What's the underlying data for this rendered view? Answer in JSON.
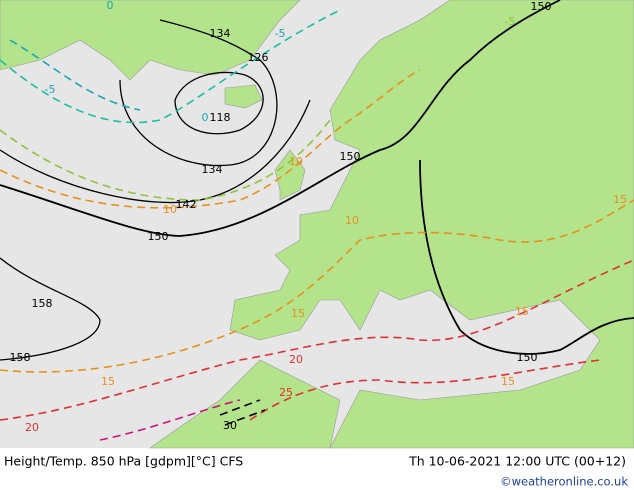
{
  "map": {
    "contour_labels": [
      "134",
      "126",
      "118",
      "134",
      "142",
      "150",
      "150",
      "150",
      "150",
      "158",
      "158",
      "-5",
      "-5",
      "-5",
      "0",
      "0",
      "10",
      "10",
      "10",
      "15",
      "15",
      "15",
      "15",
      "15",
      "20",
      "20",
      "25",
      "30"
    ]
  },
  "footer": {
    "title": "Height/Temp. 850 hPa [gdpm][°C] CFS",
    "datetime": "Th 10-06-2021 12:00 UTC (00+12)",
    "credit": "©weatheronline.co.uk"
  }
}
